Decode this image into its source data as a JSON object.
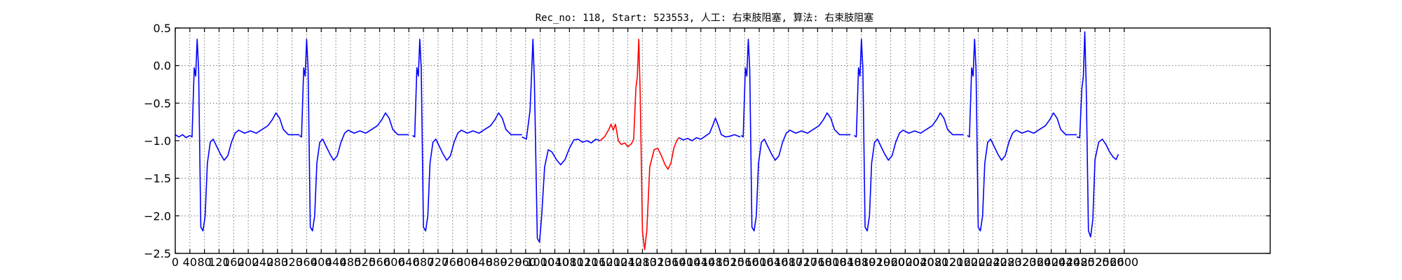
{
  "chart_data": {
    "type": "line",
    "title": "Rec_no: 118, Start: 523553, 人工: 右束肢阻塞, 算法: 右束肢阻塞",
    "xlabel": "",
    "ylabel": "",
    "xlim": [
      0,
      3000
    ],
    "ylim": [
      -2.5,
      0.5
    ],
    "x_ticks": [
      0,
      40,
      80,
      120,
      160,
      200,
      240,
      280,
      320,
      360,
      400,
      440,
      480,
      520,
      560,
      600,
      640,
      680,
      720,
      760,
      800,
      840,
      880,
      920,
      960,
      1000,
      1040,
      1080,
      1120,
      1160,
      1200,
      1240,
      1280,
      1320,
      1360,
      1400,
      1440,
      1480,
      1520,
      1560,
      1600,
      1640,
      1680,
      1720,
      1760,
      1800,
      1840,
      1880,
      1920,
      1960,
      2000,
      2040,
      2080,
      2120,
      2160,
      2200,
      2240,
      2280,
      2320,
      2360,
      2400,
      2440,
      2480,
      2520,
      2560,
      2600
    ],
    "x_tick_labels": [
      "0",
      "40",
      "80",
      "120",
      "160",
      "200",
      "240",
      "280",
      "320",
      "360",
      "400",
      "440",
      "480",
      "520",
      "560",
      "600",
      "640",
      "680",
      "720",
      "760",
      "800",
      "840",
      "880",
      "920",
      "960",
      "1000",
      "1040",
      "1080",
      "1120",
      "1160",
      "1200",
      "1240",
      "1280",
      "1320",
      "1360",
      "1400",
      "1440",
      "1480",
      "1520",
      "1560",
      "1600",
      "1640",
      "1680",
      "1720",
      "1760",
      "1800",
      "1840",
      "1880",
      "1920",
      "1960",
      "2000",
      "2040",
      "2080",
      "2120",
      "2160",
      "2200",
      "2240",
      "2280",
      "2320",
      "2360",
      "2400",
      "2440",
      "2480",
      "2520",
      "2560",
      "2600"
    ],
    "y_ticks": [
      0.5,
      0.0,
      -0.5,
      -1.0,
      -1.5,
      -2.0,
      -2.5
    ],
    "y_tick_labels": [
      "0.5",
      "0.0",
      "−0.5",
      "−1.0",
      "−1.5",
      "−2.0",
      "−2.5"
    ],
    "grid": true,
    "colors": {
      "normal": "#0000ff",
      "highlight": "#ff0000"
    },
    "beat_template": [
      [
        0,
        -0.93
      ],
      [
        6,
        -0.95
      ],
      [
        12,
        -0.03
      ],
      [
        16,
        -0.14
      ],
      [
        20,
        0.35
      ],
      [
        24,
        -0.05
      ],
      [
        30,
        -2.15
      ],
      [
        36,
        -2.2
      ],
      [
        42,
        -2.0
      ],
      [
        48,
        -1.3
      ],
      [
        56,
        -1.02
      ],
      [
        64,
        -0.98
      ],
      [
        74,
        -1.08
      ],
      [
        84,
        -1.18
      ],
      [
        94,
        -1.26
      ],
      [
        104,
        -1.2
      ],
      [
        114,
        -1.02
      ],
      [
        124,
        -0.9
      ],
      [
        134,
        -0.86
      ],
      [
        150,
        -0.9
      ],
      [
        166,
        -0.87
      ],
      [
        182,
        -0.9
      ],
      [
        198,
        -0.85
      ],
      [
        214,
        -0.8
      ],
      [
        226,
        -0.72
      ],
      [
        236,
        -0.63
      ],
      [
        246,
        -0.7
      ],
      [
        256,
        -0.85
      ],
      [
        270,
        -0.92
      ],
      [
        300,
        -0.92
      ]
    ],
    "series": [
      {
        "color": "normal",
        "values": [
          [
            0,
            -0.92
          ],
          [
            10,
            -0.95
          ],
          [
            20,
            -0.92
          ],
          [
            30,
            -0.96
          ],
          [
            40,
            -0.93
          ]
        ]
      },
      {
        "color": "normal",
        "beat": true,
        "start": 40
      },
      {
        "color": "normal",
        "beat": true,
        "start": 340
      },
      {
        "color": "normal",
        "beat": true,
        "start": 650
      },
      {
        "color": "normal",
        "values": [
          [
            950,
            -0.95
          ],
          [
            962,
            -0.98
          ],
          [
            972,
            -0.6
          ],
          [
            976,
            -0.15
          ],
          [
            980,
            0.35
          ],
          [
            984,
            -0.2
          ],
          [
            992,
            -2.3
          ],
          [
            998,
            -2.35
          ],
          [
            1004,
            -2.0
          ],
          [
            1012,
            -1.35
          ],
          [
            1022,
            -1.12
          ],
          [
            1032,
            -1.15
          ],
          [
            1044,
            -1.25
          ],
          [
            1056,
            -1.32
          ],
          [
            1068,
            -1.25
          ],
          [
            1080,
            -1.1
          ],
          [
            1092,
            -0.99
          ],
          [
            1104,
            -0.98
          ],
          [
            1116,
            -1.02
          ],
          [
            1128,
            -1.0
          ],
          [
            1140,
            -1.03
          ],
          [
            1152,
            -0.98
          ],
          [
            1164,
            -1.0
          ]
        ]
      },
      {
        "color": "highlight",
        "values": [
          [
            1164,
            -1.0
          ],
          [
            1176,
            -0.95
          ],
          [
            1188,
            -0.85
          ],
          [
            1194,
            -0.78
          ],
          [
            1200,
            -0.86
          ],
          [
            1206,
            -0.78
          ],
          [
            1214,
            -1.0
          ],
          [
            1222,
            -1.05
          ],
          [
            1232,
            -1.03
          ],
          [
            1240,
            -1.08
          ],
          [
            1250,
            -1.04
          ],
          [
            1256,
            -0.98
          ],
          [
            1262,
            -0.3
          ],
          [
            1266,
            -0.15
          ],
          [
            1270,
            0.35
          ],
          [
            1274,
            -0.4
          ],
          [
            1280,
            -2.2
          ],
          [
            1286,
            -2.45
          ],
          [
            1292,
            -2.2
          ],
          [
            1300,
            -1.35
          ],
          [
            1312,
            -1.12
          ],
          [
            1322,
            -1.1
          ],
          [
            1332,
            -1.2
          ],
          [
            1342,
            -1.32
          ],
          [
            1350,
            -1.38
          ],
          [
            1358,
            -1.3
          ],
          [
            1366,
            -1.1
          ],
          [
            1374,
            -1.0
          ],
          [
            1380,
            -0.96
          ]
        ]
      },
      {
        "color": "normal",
        "values": [
          [
            1380,
            -0.96
          ],
          [
            1392,
            -0.99
          ],
          [
            1404,
            -0.97
          ],
          [
            1416,
            -1.0
          ],
          [
            1428,
            -0.96
          ],
          [
            1440,
            -0.98
          ],
          [
            1452,
            -0.94
          ],
          [
            1464,
            -0.9
          ],
          [
            1474,
            -0.78
          ],
          [
            1480,
            -0.7
          ],
          [
            1488,
            -0.8
          ],
          [
            1496,
            -0.92
          ],
          [
            1508,
            -0.95
          ],
          [
            1520,
            -0.94
          ],
          [
            1532,
            -0.92
          ],
          [
            1548,
            -0.95
          ]
        ]
      },
      {
        "color": "normal",
        "beat": true,
        "start": 1550
      },
      {
        "color": "normal",
        "beat": true,
        "start": 1860
      },
      {
        "color": "normal",
        "beat": true,
        "start": 2170
      },
      {
        "color": "normal",
        "values": [
          [
            2470,
            -0.95
          ],
          [
            2478,
            -0.96
          ],
          [
            2484,
            -0.3
          ],
          [
            2488,
            -0.15
          ],
          [
            2492,
            0.45
          ],
          [
            2496,
            -0.3
          ],
          [
            2502,
            -2.2
          ],
          [
            2508,
            -2.28
          ],
          [
            2514,
            -2.05
          ],
          [
            2520,
            -1.25
          ],
          [
            2530,
            -1.02
          ],
          [
            2540,
            -0.98
          ],
          [
            2550,
            -1.05
          ],
          [
            2560,
            -1.15
          ],
          [
            2570,
            -1.22
          ],
          [
            2578,
            -1.25
          ],
          [
            2584,
            -1.18
          ]
        ]
      }
    ]
  }
}
